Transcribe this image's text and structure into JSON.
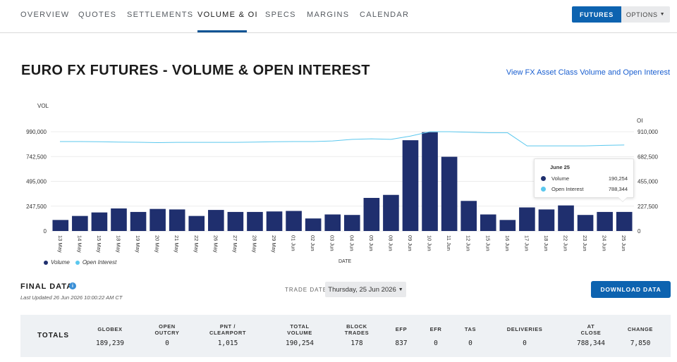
{
  "nav": {
    "tabs": [
      {
        "label": "OVERVIEW",
        "name": "tab-overview"
      },
      {
        "label": "QUOTES",
        "name": "tab-quotes"
      },
      {
        "label": "SETTLEMENTS",
        "name": "tab-settlements"
      },
      {
        "label": "VOLUME & OI",
        "name": "tab-volume-oi"
      },
      {
        "label": "SPECS",
        "name": "tab-specs"
      },
      {
        "label": "MARGINS",
        "name": "tab-margins"
      },
      {
        "label": "CALENDAR",
        "name": "tab-calendar"
      }
    ],
    "futures_label": "FUTURES",
    "options_label": "OPTIONS",
    "accent_color": "#0d63b0"
  },
  "header": {
    "title": "EURO FX FUTURES - VOLUME & OPEN INTEREST",
    "link": "View FX Asset Class Volume and Open Interest"
  },
  "chart_data": {
    "type": "bar",
    "ylabel": "VOL",
    "y2label": "OI",
    "xlabel": "DATE",
    "ylim": [
      0,
      990000
    ],
    "y2lim": [
      0,
      910000
    ],
    "yticks": [
      "990,000",
      "742,500",
      "495,000",
      "247,500",
      "0"
    ],
    "y2ticks": [
      "910,000",
      "682,500",
      "455,000",
      "227,500",
      "0"
    ],
    "categories": [
      "13 May",
      "14 May",
      "15 May",
      "18 May",
      "19 May",
      "20 May",
      "21 May",
      "22 May",
      "26 May",
      "27 May",
      "28 May",
      "29 May",
      "01 Jun",
      "02 Jun",
      "03 Jun",
      "04 Jun",
      "05 Jun",
      "08 Jun",
      "09 Jun",
      "10 Jun",
      "11 Jun",
      "12 Jun",
      "15 Jun",
      "16 Jun",
      "17 Jun",
      "18 Jun",
      "22 Jun",
      "23 Jun",
      "24 Jun",
      "25 Jun"
    ],
    "series": [
      {
        "name": "Volume",
        "type": "bar",
        "color": "#1f2f6e",
        "values": [
          110000,
          150000,
          185000,
          225000,
          190000,
          220000,
          215000,
          150000,
          210000,
          190000,
          190000,
          195000,
          200000,
          125000,
          165000,
          160000,
          330000,
          360000,
          905000,
          985000,
          740000,
          300000,
          165000,
          110000,
          235000,
          215000,
          255000,
          160000,
          190000,
          190254
        ]
      },
      {
        "name": "Open Interest",
        "type": "line",
        "color": "#5bc8ee",
        "values": [
          820000,
          820000,
          818000,
          815000,
          813000,
          810000,
          812000,
          812000,
          812000,
          812000,
          815000,
          818000,
          820000,
          820000,
          825000,
          840000,
          845000,
          840000,
          870000,
          910000,
          910000,
          905000,
          900000,
          900000,
          780000,
          780000,
          780000,
          780000,
          785000,
          788344
        ]
      }
    ],
    "legend_position": "bottom-left",
    "grid": true
  },
  "tooltip": {
    "title": "June 25",
    "rows": [
      {
        "label": "Volume",
        "value": "190,254",
        "color": "#1f2f6e"
      },
      {
        "label": "Open Interest",
        "value": "788,344",
        "color": "#5bc8ee"
      }
    ]
  },
  "final": {
    "title": "FINAL DATA",
    "info_icon": "i",
    "last_updated": "Last Updated 26 Jun 2026 10:00:22 AM CT",
    "trade_date_label": "TRADE DATE",
    "trade_date_value": "Thursday, 25 Jun 2026",
    "download_label": "DOWNLOAD DATA"
  },
  "totals": {
    "label": "TOTALS",
    "columns": [
      {
        "h1": "GLOBEX",
        "h2": "",
        "value": "189,239"
      },
      {
        "h1": "OPEN",
        "h2": "OUTCRY",
        "value": "0"
      },
      {
        "h1": "PNT /",
        "h2": "CLEARPORT",
        "value": "1,015"
      },
      {
        "h1": "TOTAL",
        "h2": "VOLUME",
        "value": "190,254"
      },
      {
        "h1": "BLOCK",
        "h2": "TRADES",
        "value": "178"
      },
      {
        "h1": "EFP",
        "h2": "",
        "value": "837"
      },
      {
        "h1": "EFR",
        "h2": "",
        "value": "0"
      },
      {
        "h1": "TAS",
        "h2": "",
        "value": "0"
      },
      {
        "h1": "DELIVERIES",
        "h2": "",
        "value": "0"
      },
      {
        "h1": "AT",
        "h2": "CLOSE",
        "value": "788,344"
      },
      {
        "h1": "CHANGE",
        "h2": "",
        "value": "7,850"
      }
    ]
  }
}
